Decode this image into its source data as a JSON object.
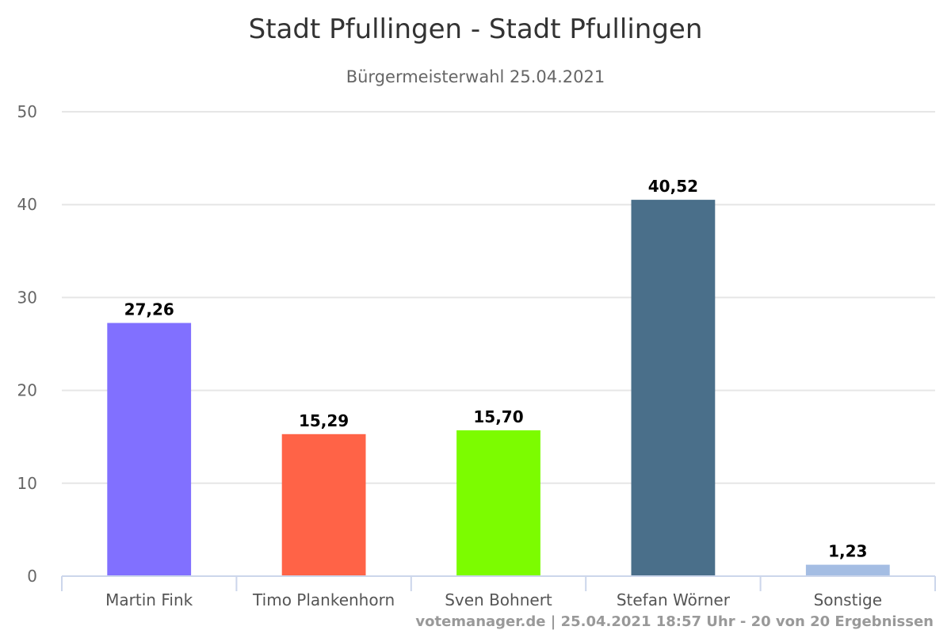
{
  "chart_data": {
    "type": "bar",
    "title": "Stadt Pfullingen - Stadt Pfullingen",
    "subtitle": "Bürgermeisterwahl 25.04.2021",
    "xlabel": "",
    "ylabel": "",
    "ylim": [
      0,
      50
    ],
    "yticks": [
      0,
      10,
      20,
      30,
      40,
      50
    ],
    "grid": true,
    "legend": "none",
    "categories": [
      "Martin Fink",
      "Timo Plankenhorn",
      "Sven Bohnert",
      "Stefan Wörner",
      "Sonstige"
    ],
    "values": [
      27.26,
      15.29,
      15.7,
      40.52,
      1.23
    ],
    "data_labels": [
      "27,26",
      "15,29",
      "15,70",
      "40,52",
      "1,23"
    ],
    "colors": [
      "#8170ff",
      "#ff6347",
      "#7cfc00",
      "#4a6f8a",
      "#a4bde3"
    ],
    "credits": "votemanager.de | 25.04.2021 18:57 Uhr - 20 von 20 Ergebnissen"
  }
}
